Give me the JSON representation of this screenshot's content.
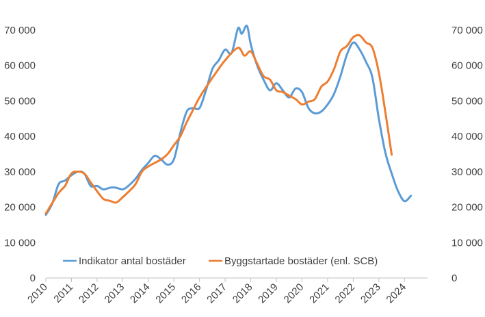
{
  "chart_data": {
    "type": "line",
    "title": "",
    "xlabel": "",
    "ylabel": "",
    "x_ticks": [
      "2010",
      "2011",
      "2012",
      "2013",
      "2014",
      "2015",
      "2016",
      "2017",
      "2018",
      "2019",
      "2020",
      "2021",
      "2022",
      "2023",
      "2024"
    ],
    "xlim": [
      2010,
      2024.9
    ],
    "ylim": [
      0,
      70000
    ],
    "y_ticks": [
      0,
      10000,
      20000,
      30000,
      40000,
      50000,
      60000,
      70000
    ],
    "y_tick_labels": [
      "0",
      "10 000",
      "20 000",
      "30 000",
      "40 000",
      "50 000",
      "60 000",
      "70 000"
    ],
    "grid": false,
    "legend_position": "bottom-left",
    "series": [
      {
        "name": "Indikator antal bostäder",
        "color": "#5B9BD5",
        "points": [
          [
            2010.0,
            17800
          ],
          [
            2010.25,
            21000
          ],
          [
            2010.5,
            26500
          ],
          [
            2010.75,
            27500
          ],
          [
            2011.0,
            29000
          ],
          [
            2011.25,
            30000
          ],
          [
            2011.5,
            29500
          ],
          [
            2011.75,
            26000
          ],
          [
            2012.0,
            26000
          ],
          [
            2012.25,
            25000
          ],
          [
            2012.5,
            25500
          ],
          [
            2012.75,
            25500
          ],
          [
            2013.0,
            25000
          ],
          [
            2013.25,
            26200
          ],
          [
            2013.5,
            28000
          ],
          [
            2013.75,
            30500
          ],
          [
            2014.0,
            32500
          ],
          [
            2014.25,
            34500
          ],
          [
            2014.5,
            33500
          ],
          [
            2014.75,
            32000
          ],
          [
            2015.0,
            33500
          ],
          [
            2015.25,
            41000
          ],
          [
            2015.5,
            47000
          ],
          [
            2015.75,
            48000
          ],
          [
            2016.0,
            48000
          ],
          [
            2016.25,
            53000
          ],
          [
            2016.5,
            59000
          ],
          [
            2016.75,
            61500
          ],
          [
            2017.0,
            64500
          ],
          [
            2017.25,
            63500
          ],
          [
            2017.5,
            70500
          ],
          [
            2017.65,
            69000
          ],
          [
            2017.85,
            71200
          ],
          [
            2018.0,
            66000
          ],
          [
            2018.25,
            60000
          ],
          [
            2018.5,
            56000
          ],
          [
            2018.75,
            53000
          ],
          [
            2019.0,
            55000
          ],
          [
            2019.25,
            53000
          ],
          [
            2019.5,
            51000
          ],
          [
            2019.75,
            53500
          ],
          [
            2020.0,
            52500
          ],
          [
            2020.25,
            48000
          ],
          [
            2020.5,
            46500
          ],
          [
            2020.75,
            47000
          ],
          [
            2021.0,
            49000
          ],
          [
            2021.25,
            52000
          ],
          [
            2021.5,
            57000
          ],
          [
            2021.75,
            63000
          ],
          [
            2022.0,
            66500
          ],
          [
            2022.25,
            64500
          ],
          [
            2022.5,
            61000
          ],
          [
            2022.75,
            56500
          ],
          [
            2023.0,
            45000
          ],
          [
            2023.25,
            35500
          ],
          [
            2023.5,
            29500
          ],
          [
            2023.75,
            24500
          ],
          [
            2024.0,
            21700
          ],
          [
            2024.25,
            23200
          ]
        ]
      },
      {
        "name": "Byggstartade bostäder (enl. SCB)",
        "color": "#ED7D31",
        "points": [
          [
            2010.0,
            18200
          ],
          [
            2010.5,
            24000
          ],
          [
            2010.75,
            26000
          ],
          [
            2011.0,
            29500
          ],
          [
            2011.25,
            30000
          ],
          [
            2011.5,
            29500
          ],
          [
            2011.75,
            27000
          ],
          [
            2012.0,
            24500
          ],
          [
            2012.25,
            22300
          ],
          [
            2012.5,
            21800
          ],
          [
            2012.75,
            21300
          ],
          [
            2013.0,
            22800
          ],
          [
            2013.25,
            24500
          ],
          [
            2013.5,
            26500
          ],
          [
            2013.75,
            30000
          ],
          [
            2014.0,
            31500
          ],
          [
            2014.5,
            33500
          ],
          [
            2014.75,
            35000
          ],
          [
            2015.0,
            37500
          ],
          [
            2015.25,
            40000
          ],
          [
            2015.5,
            44000
          ],
          [
            2015.75,
            47500
          ],
          [
            2016.0,
            51000
          ],
          [
            2016.5,
            56500
          ],
          [
            2017.0,
            61500
          ],
          [
            2017.5,
            65000
          ],
          [
            2017.75,
            62800
          ],
          [
            2018.0,
            64000
          ],
          [
            2018.25,
            60500
          ],
          [
            2018.5,
            57000
          ],
          [
            2018.75,
            56000
          ],
          [
            2019.0,
            53000
          ],
          [
            2019.25,
            52500
          ],
          [
            2019.5,
            51500
          ],
          [
            2019.75,
            50500
          ],
          [
            2020.0,
            49000
          ],
          [
            2020.25,
            49800
          ],
          [
            2020.5,
            50500
          ],
          [
            2020.75,
            54000
          ],
          [
            2021.0,
            55500
          ],
          [
            2021.25,
            59000
          ],
          [
            2021.5,
            64000
          ],
          [
            2021.75,
            65500
          ],
          [
            2022.0,
            68000
          ],
          [
            2022.25,
            68500
          ],
          [
            2022.5,
            66500
          ],
          [
            2022.75,
            65000
          ],
          [
            2023.0,
            58000
          ],
          [
            2023.25,
            47000
          ],
          [
            2023.5,
            34800
          ]
        ]
      }
    ]
  }
}
